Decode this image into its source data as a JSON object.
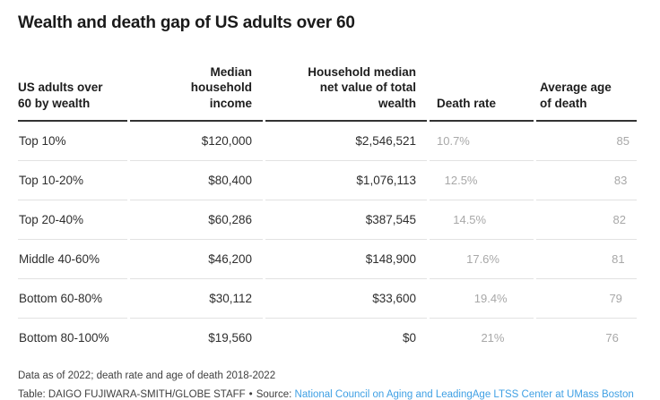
{
  "chart_data": {
    "type": "table",
    "title": "Wealth and death gap of US adults over 60",
    "columns": [
      {
        "name": "US adults over 60 by wealth",
        "display": "US adults over\n60 by wealth"
      },
      {
        "name": "Median household income",
        "display": "Median\nhousehold\nincome"
      },
      {
        "name": "Household median net value of total wealth",
        "display": "Household median\nnet value of total\nwealth"
      },
      {
        "name": "Death rate",
        "display": "Death rate"
      },
      {
        "name": "Average age of death",
        "display": "Average age\nof death"
      }
    ],
    "rows": [
      {
        "wealth_group": "Top 10%",
        "median_household_income": "$120,000",
        "household_median_net_wealth": "$2,546,521",
        "death_rate": "10.7%",
        "death_rate_pct": 10.7,
        "average_age_of_death": 85
      },
      {
        "wealth_group": "Top 10-20%",
        "median_household_income": "$80,400",
        "household_median_net_wealth": "$1,076,113",
        "death_rate": "12.5%",
        "death_rate_pct": 12.5,
        "average_age_of_death": 83
      },
      {
        "wealth_group": "Top 20-40%",
        "median_household_income": "$60,286",
        "household_median_net_wealth": "$387,545",
        "death_rate": "14.5%",
        "death_rate_pct": 14.5,
        "average_age_of_death": 82
      },
      {
        "wealth_group": "Middle 40-60%",
        "median_household_income": "$46,200",
        "household_median_net_wealth": "$148,900",
        "death_rate": "17.6%",
        "death_rate_pct": 17.6,
        "average_age_of_death": 81
      },
      {
        "wealth_group": "Bottom 60-80%",
        "median_household_income": "$30,112",
        "household_median_net_wealth": "$33,600",
        "death_rate": "19.4%",
        "death_rate_pct": 19.4,
        "average_age_of_death": 79
      },
      {
        "wealth_group": "Bottom 80-100%",
        "median_household_income": "$19,560",
        "household_median_net_wealth": "$0",
        "death_rate": "21%",
        "death_rate_pct": 21.0,
        "average_age_of_death": 76
      }
    ],
    "death_rate_range": [
      10.7,
      21
    ],
    "average_age_range": [
      76,
      85
    ],
    "layout_hint": "death rate values indented proportional to value; age values offset from right proportional to (max - value)"
  },
  "notes": {
    "data_note": "Data as of 2022; death rate and age of death 2018-2022",
    "credit": "Table: DAIGO FUJIWARA-SMITH/GLOBE STAFF",
    "separator": "•",
    "source_prefix": "Source:",
    "source_link_text": "National Council on Aging and LeadingAge LTSS Center at UMass Boston"
  },
  "colors": {
    "title_text": "#1a1a1a",
    "body_text": "#2e2e2e",
    "muted_value": "#a8a8a8",
    "header_border": "#333333",
    "row_border": "#e2e2e2",
    "link": "#3fa0e4"
  }
}
